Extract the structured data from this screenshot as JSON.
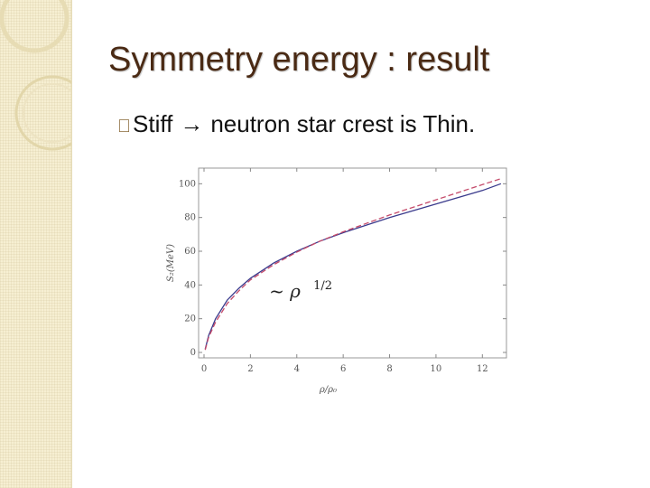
{
  "slide": {
    "title": "Symmetry energy : result",
    "bullet": {
      "marker": "\u0000",
      "lead": "Stiff",
      "arrow": "→",
      "text": "neutron star crest is Thin."
    }
  },
  "colors": {
    "title": "#4a2a14",
    "band": "#f6efd2",
    "solid_curve": "#3a3a8c",
    "dashed_curve": "#c44a6a"
  },
  "chart_data": {
    "type": "line",
    "title": "",
    "xlabel": "ρ/ρ₀",
    "ylabel": "S₂(MeV)",
    "xlim": [
      0,
      13
    ],
    "ylim": [
      0,
      105
    ],
    "xticks": [
      0,
      2,
      4,
      6,
      8,
      10,
      12
    ],
    "yticks": [
      0,
      20,
      40,
      60,
      80,
      100
    ],
    "annotation": {
      "base": "~ ρ",
      "exp": "1/2",
      "x": 3.0,
      "y": 38
    },
    "grid": false,
    "series": [
      {
        "style": "solid",
        "x": [
          0.05,
          0.2,
          0.5,
          1,
          1.5,
          2,
          3,
          4,
          5,
          6,
          7,
          8,
          9,
          10,
          11,
          12,
          12.8
        ],
        "y": [
          2,
          10,
          20,
          31,
          38,
          44,
          53,
          60,
          66,
          71,
          75.5,
          80,
          84,
          88,
          92,
          96,
          100
        ]
      },
      {
        "style": "dashed",
        "x": [
          0.05,
          0.2,
          0.5,
          1,
          1.5,
          2,
          3,
          4,
          5,
          6,
          7,
          8,
          9,
          10,
          11,
          12,
          12.8
        ],
        "y": [
          1.5,
          9,
          18,
          29,
          36.5,
          43,
          52,
          59.5,
          66,
          71.5,
          76.5,
          81.5,
          86,
          90.5,
          95,
          99.5,
          103
        ]
      }
    ]
  }
}
